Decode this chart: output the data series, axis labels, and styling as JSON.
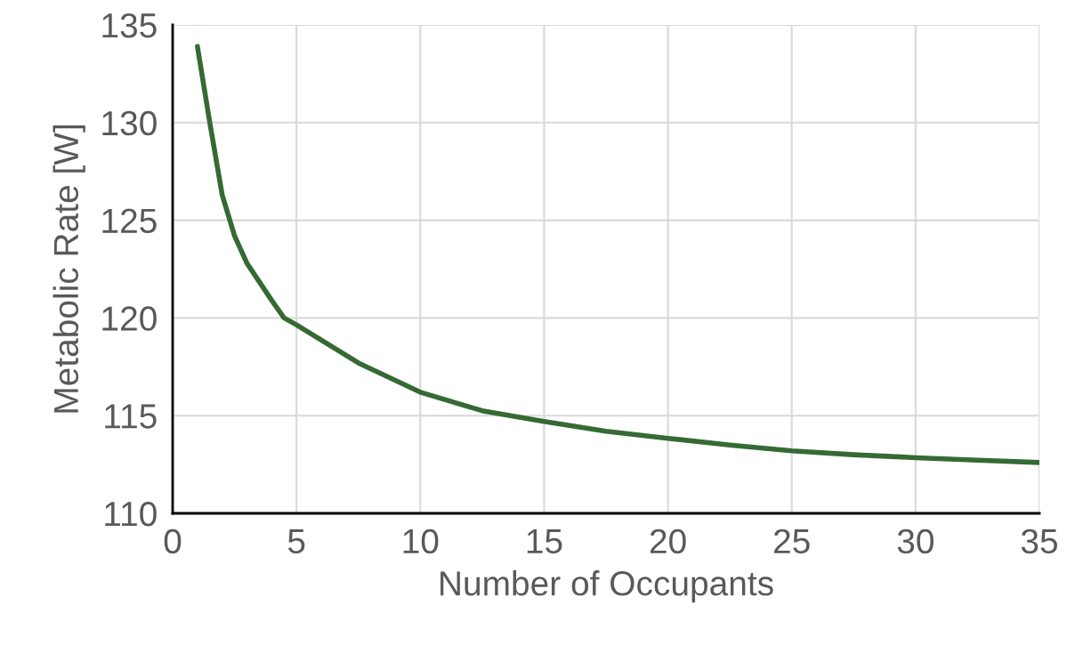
{
  "chart_data": {
    "type": "line",
    "xlabel": "Number of Occupants",
    "ylabel": "Metabolic Rate [W]",
    "x": [
      1,
      1.5,
      2,
      2.5,
      3,
      4,
      4.5,
      5,
      7.5,
      10,
      12.5,
      15,
      17.5,
      20,
      22.5,
      25,
      27.5,
      30,
      32.5,
      35
    ],
    "series": [
      {
        "color": "#356a34",
        "values": [
          133.9,
          130.0,
          126.3,
          124.2,
          122.8,
          120.9,
          120.0,
          119.65,
          117.7,
          116.2,
          115.25,
          114.7,
          114.2,
          113.84,
          113.5,
          113.2,
          113.0,
          112.85,
          112.72,
          112.6
        ]
      }
    ],
    "xlim": [
      0,
      35
    ],
    "xticks": [
      0,
      5,
      10,
      15,
      20,
      25,
      30,
      35
    ],
    "ylim": [
      110,
      135
    ],
    "yticks": [
      110,
      115,
      120,
      125,
      130,
      135
    ],
    "grid": true,
    "marker": "none",
    "line_style": "solid"
  }
}
